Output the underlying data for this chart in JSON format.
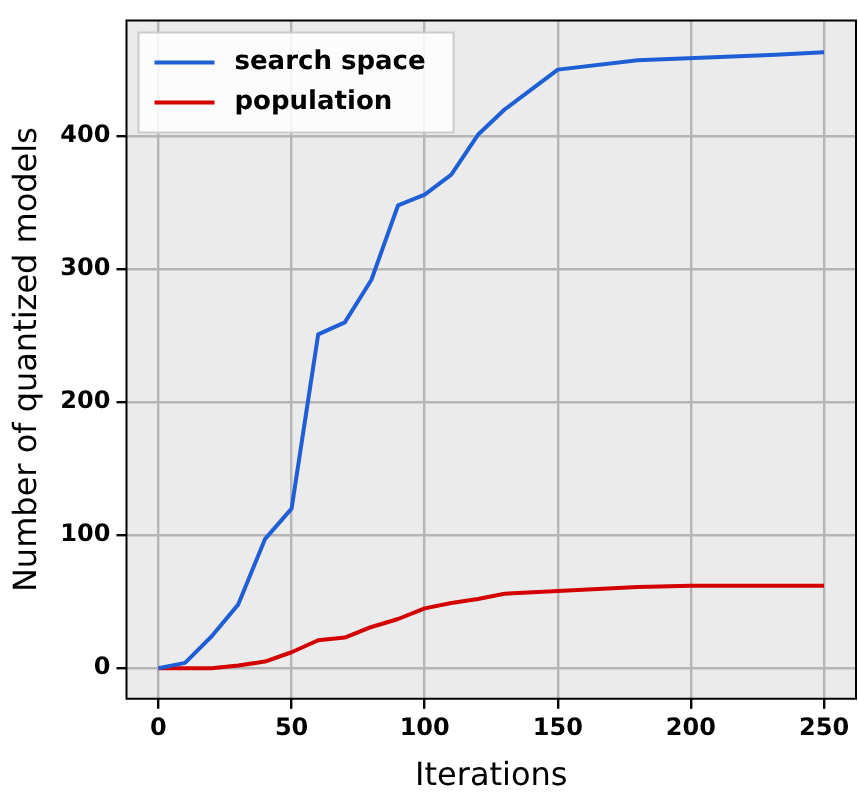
{
  "chart_data": {
    "type": "line",
    "xlabel": "Iterations",
    "ylabel": "Number of quantized models",
    "xlim": [
      -12,
      262
    ],
    "ylim": [
      -23,
      487
    ],
    "xticks": [
      0,
      50,
      100,
      150,
      200,
      250
    ],
    "yticks": [
      0,
      100,
      200,
      300,
      400
    ],
    "grid": true,
    "legend": "top left",
    "marker": "none",
    "line_style": "solid",
    "series": [
      {
        "name": "search space",
        "color": "#1f5fd6",
        "x": [
          0,
          10,
          20,
          30,
          40,
          50,
          60,
          70,
          80,
          90,
          100,
          110,
          120,
          130,
          150,
          180,
          230,
          250
        ],
        "values": [
          0,
          4,
          24,
          48,
          97,
          120,
          251,
          260,
          292,
          348,
          356,
          371,
          401,
          420,
          450,
          457,
          461,
          463
        ]
      },
      {
        "name": "population",
        "color": "#d40000",
        "x": [
          0,
          10,
          20,
          30,
          40,
          50,
          60,
          70,
          80,
          90,
          100,
          110,
          120,
          130,
          150,
          180,
          200,
          250
        ],
        "values": [
          0,
          0,
          0,
          2,
          5,
          12,
          21,
          23,
          31,
          37,
          45,
          49,
          52,
          56,
          58,
          61,
          62,
          62
        ]
      }
    ]
  }
}
